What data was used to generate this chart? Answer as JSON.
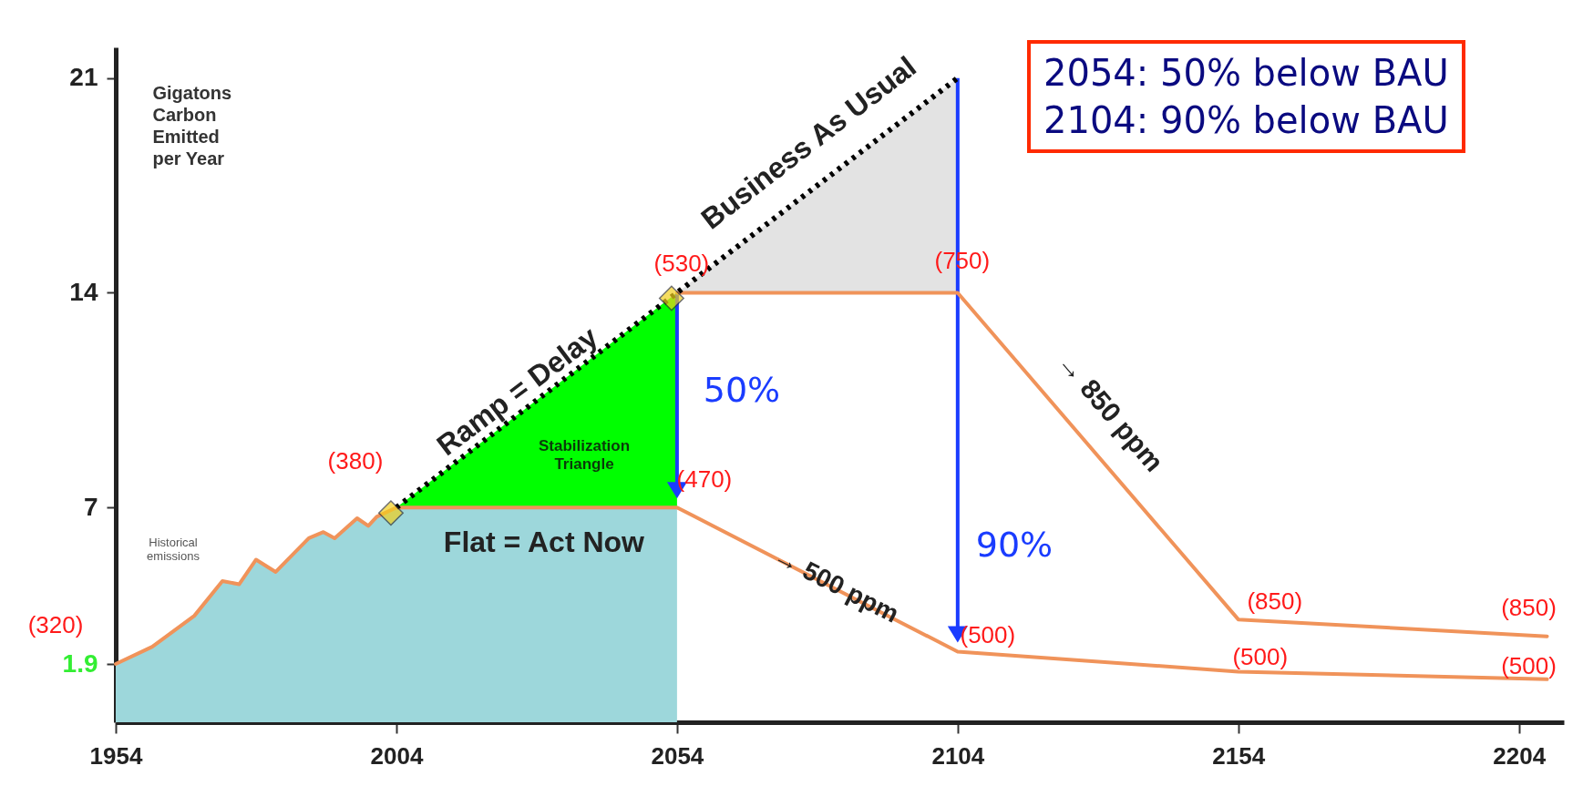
{
  "chart_data": {
    "type": "line",
    "ylabel": "Gigatons Carbon Emitted per Year",
    "xlim": [
      1954,
      2212
    ],
    "xticks": [
      1954,
      2004,
      2054,
      2104,
      2154,
      2204
    ],
    "ylim": [
      0,
      22
    ],
    "yticks": [
      1.9,
      7,
      14,
      21
    ],
    "grid": false,
    "series": [
      {
        "type": "area",
        "color": "#9dd7db",
        "x": [
          1954,
          1960.5,
          1968,
          1973,
          1976,
          1979,
          1982.5,
          1988.4,
          1991,
          1993,
          1997,
          1999,
          2000.5,
          2004,
          2054
        ],
        "values": [
          1.9,
          2.46,
          3.47,
          4.6,
          4.5,
          5.3,
          4.9,
          6.0,
          6.2,
          6.0,
          6.65,
          6.4,
          6.7,
          7,
          7
        ]
      },
      {
        "type": "area",
        "color": "#00ff00",
        "x": [
          2004,
          2054
        ],
        "values": [
          7,
          14
        ]
      },
      {
        "type": "area",
        "color": "#e3e3e3",
        "x": [
          2054,
          2104
        ],
        "values": [
          14,
          21
        ]
      },
      {
        "color": "#f0935a",
        "x": [
          1954,
          1960.5,
          1968,
          1973,
          1976,
          1979,
          1982.5,
          1988.4,
          1991,
          1993,
          1997,
          1999,
          2000.5,
          2004,
          2054,
          2104,
          2154,
          2209
        ],
        "values": [
          1.9,
          2.46,
          3.47,
          4.6,
          4.5,
          5.3,
          4.9,
          6.0,
          6.2,
          6.0,
          6.65,
          6.4,
          6.7,
          7,
          7,
          2.3,
          1.65,
          1.4
        ]
      },
      {
        "color": "#f0935a",
        "x": [
          2054,
          2104,
          2154,
          2209
        ],
        "values": [
          14,
          14,
          3.35,
          2.8
        ]
      },
      {
        "color": "#000000",
        "line_style": "dotted",
        "x": [
          2004,
          2104
        ],
        "values": [
          7,
          21
        ]
      }
    ],
    "annotations": [
      {
        "text": "(320)",
        "x": 1954,
        "y": 1.9
      },
      {
        "text": "(380)",
        "x": 2004,
        "y": 7
      },
      {
        "text": "(530)",
        "x": 2054,
        "y": 14
      },
      {
        "text": "(470)",
        "x": 2054,
        "y": 7
      },
      {
        "text": "(750)",
        "x": 2104,
        "y": 14
      },
      {
        "text": "(500)",
        "x": 2104,
        "y": 2.3
      },
      {
        "text": "(850)",
        "x": 2154,
        "y": 3.35
      },
      {
        "text": "(500)",
        "x": 2154,
        "y": 1.65
      },
      {
        "text": "(850)",
        "x": 2209,
        "y": 2.8
      },
      {
        "text": "(500)",
        "x": 2209,
        "y": 1.4
      },
      {
        "text": "Business As Usual",
        "x": 2079,
        "y": 17.5
      },
      {
        "text": "Ramp = Delay",
        "x": 2029,
        "y": 10.5
      },
      {
        "text": "Flat = Act Now",
        "x": 2029,
        "y": 7
      },
      "Stabilization Triangle",
      {
        "text": "→ 500 ppm",
        "x": 2079,
        "y": 4.65
      },
      {
        "text": "→ 850 ppm",
        "x": 2129,
        "y": 8.7
      },
      "Historical emissions",
      "50%",
      "90%",
      "2054: 50% below BAU",
      "2104: 90% below BAU"
    ]
  }
}
